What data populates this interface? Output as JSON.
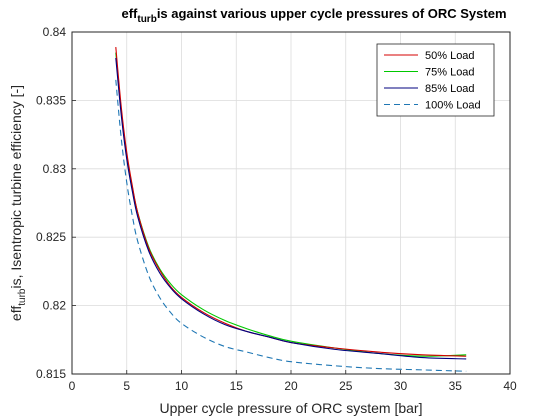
{
  "chart_data": {
    "type": "line",
    "title": {
      "main": "eff",
      "sub": "turb",
      "rest": "is  against various upper cycle pressures of ORC System"
    },
    "xlabel": "Upper cycle pressure of ORC system [bar]",
    "ylabel": {
      "main": "eff",
      "sub": "turb",
      "rest": "is, Isentropic turbine efficiency [-]"
    },
    "xlim": [
      0,
      40
    ],
    "ylim": [
      0.815,
      0.84
    ],
    "xticks": [
      0,
      5,
      10,
      15,
      20,
      25,
      30,
      35,
      40
    ],
    "xtick_labels": [
      "0",
      "5",
      "10",
      "15",
      "20",
      "25",
      "30",
      "35",
      "40"
    ],
    "yticks": [
      0.815,
      0.82,
      0.825,
      0.83,
      0.835,
      0.84
    ],
    "ytick_labels": [
      "0.815",
      "0.82",
      "0.825",
      "0.83",
      "0.835",
      "0.84"
    ],
    "grid": true,
    "legend_position": "top-right",
    "series": [
      {
        "name": "50% Load",
        "color": "#d40000",
        "dash": "solid",
        "x": [
          4,
          4.5,
          5,
          5.5,
          6,
          7,
          8,
          9,
          10,
          12,
          14,
          16,
          18,
          20,
          24,
          28,
          32,
          36
        ],
        "y": [
          0.8389,
          0.8345,
          0.8312,
          0.8288,
          0.8268,
          0.8242,
          0.8226,
          0.8214,
          0.8206,
          0.8195,
          0.8187,
          0.8181,
          0.8177,
          0.8173,
          0.8169,
          0.8166,
          0.8164,
          0.8163
        ]
      },
      {
        "name": "75% Load",
        "color": "#00c800",
        "dash": "solid",
        "x": [
          4,
          4.5,
          5,
          5.5,
          6,
          7,
          8,
          9,
          10,
          12,
          14,
          16,
          18,
          20,
          24,
          28,
          32,
          36
        ],
        "y": [
          0.8385,
          0.8342,
          0.831,
          0.8287,
          0.8268,
          0.8243,
          0.8227,
          0.8216,
          0.8208,
          0.8197,
          0.8189,
          0.8183,
          0.8178,
          0.8174,
          0.8169,
          0.8165,
          0.8163,
          0.8164
        ]
      },
      {
        "name": "85% Load",
        "color": "#00007f",
        "dash": "solid",
        "x": [
          4,
          4.5,
          5,
          5.5,
          6,
          7,
          8,
          9,
          10,
          12,
          14,
          16,
          18,
          20,
          24,
          28,
          32,
          36
        ],
        "y": [
          0.8381,
          0.8339,
          0.8307,
          0.8284,
          0.8265,
          0.824,
          0.8224,
          0.8213,
          0.8205,
          0.8194,
          0.8186,
          0.8181,
          0.8177,
          0.8173,
          0.8168,
          0.8165,
          0.8162,
          0.8161
        ]
      },
      {
        "name": "100% Load",
        "color": "#1f77b4",
        "dash": "dashed",
        "x": [
          4,
          4.5,
          5,
          5.5,
          6,
          7,
          8,
          9,
          10,
          12,
          14,
          16,
          18,
          20,
          24,
          28,
          32,
          36
        ],
        "y": [
          0.8365,
          0.8322,
          0.829,
          0.8266,
          0.8247,
          0.8222,
          0.8206,
          0.8195,
          0.8187,
          0.8177,
          0.817,
          0.8166,
          0.8162,
          0.8159,
          0.8156,
          0.8154,
          0.8153,
          0.8152
        ]
      }
    ]
  }
}
